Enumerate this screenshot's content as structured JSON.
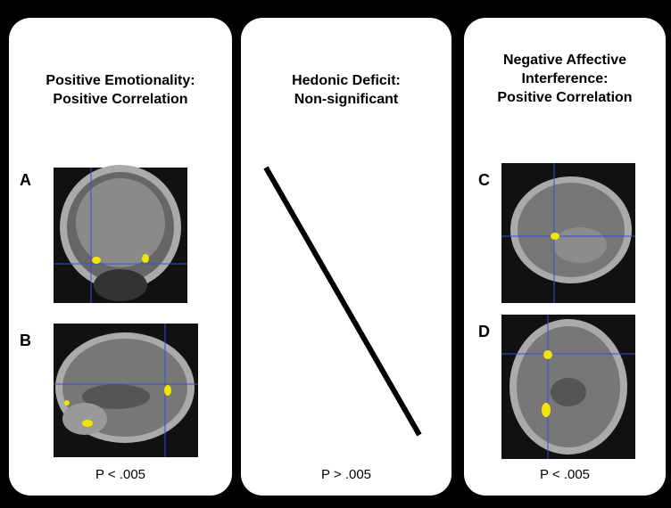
{
  "panels": [
    {
      "title_lines": [
        "Positive Emotionality:",
        "Positive Correlation"
      ],
      "images": [
        {
          "label": "A"
        },
        {
          "label": "B"
        }
      ],
      "p_value": "P < .005"
    },
    {
      "title_lines": [
        "Hedonic Deficit:",
        "Non-significant"
      ],
      "p_value": "P > .005"
    },
    {
      "title_lines": [
        "Negative Affective",
        "Interference:",
        "Positive Correlation"
      ],
      "images": [
        {
          "label": "C"
        },
        {
          "label": "D"
        }
      ],
      "p_value": "P < .005"
    }
  ]
}
